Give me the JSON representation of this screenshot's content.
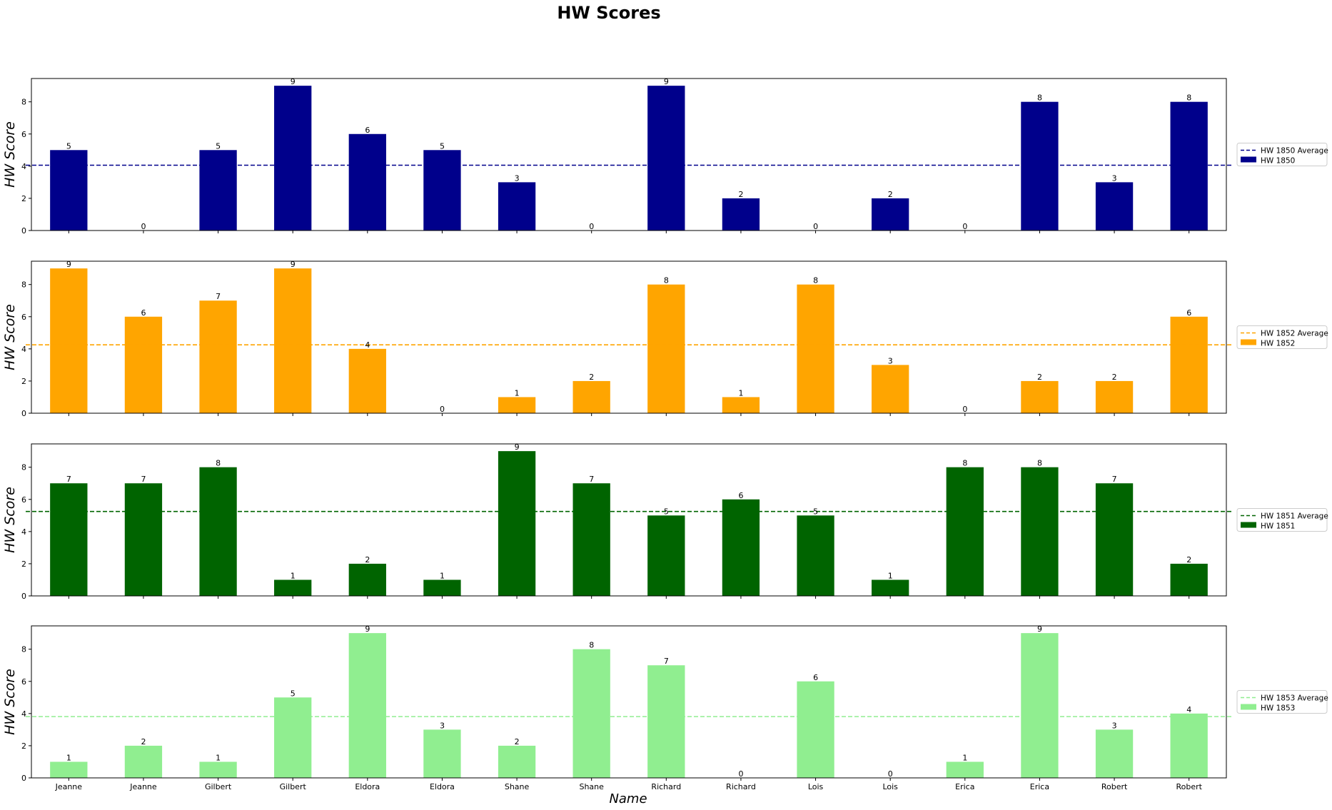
{
  "chart_data": {
    "type": "bar",
    "title": "HW Scores",
    "xlabel": "Name",
    "ylabel": "HW Score",
    "ylim": [
      0,
      9.45
    ],
    "yticks": [
      0,
      2,
      4,
      6,
      8
    ],
    "categories": [
      "Jeanne",
      "Jeanne",
      "Gilbert",
      "Gilbert",
      "Eldora",
      "Eldora",
      "Shane",
      "Shane",
      "Richard",
      "Richard",
      "Lois",
      "Lois",
      "Erica",
      "Erica",
      "Robert",
      "Robert"
    ],
    "legend_placement": "right",
    "panels": [
      {
        "series_name": "HW 1850",
        "average_label": "HW 1850 Average",
        "color": "#00008B",
        "average": 4.06,
        "values": [
          5,
          0,
          5,
          9,
          6,
          5,
          3,
          0,
          9,
          2,
          0,
          2,
          0,
          8,
          3,
          8
        ]
      },
      {
        "series_name": "HW 1852",
        "average_label": "HW 1852 Average",
        "color": "#FFA500",
        "average": 4.25,
        "values": [
          9,
          6,
          7,
          9,
          4,
          0,
          1,
          2,
          8,
          1,
          8,
          3,
          0,
          2,
          2,
          6
        ]
      },
      {
        "series_name": "HW 1851",
        "average_label": "HW 1851 Average",
        "color": "#006400",
        "average": 5.25,
        "values": [
          7,
          7,
          8,
          1,
          2,
          1,
          9,
          7,
          5,
          6,
          5,
          1,
          8,
          8,
          7,
          2
        ]
      },
      {
        "series_name": "HW 1853",
        "average_label": "HW 1853 Average",
        "color": "#90EE90",
        "average": 3.81,
        "values": [
          1,
          2,
          1,
          5,
          9,
          3,
          2,
          8,
          7,
          0,
          6,
          0,
          1,
          9,
          3,
          4
        ]
      }
    ]
  }
}
